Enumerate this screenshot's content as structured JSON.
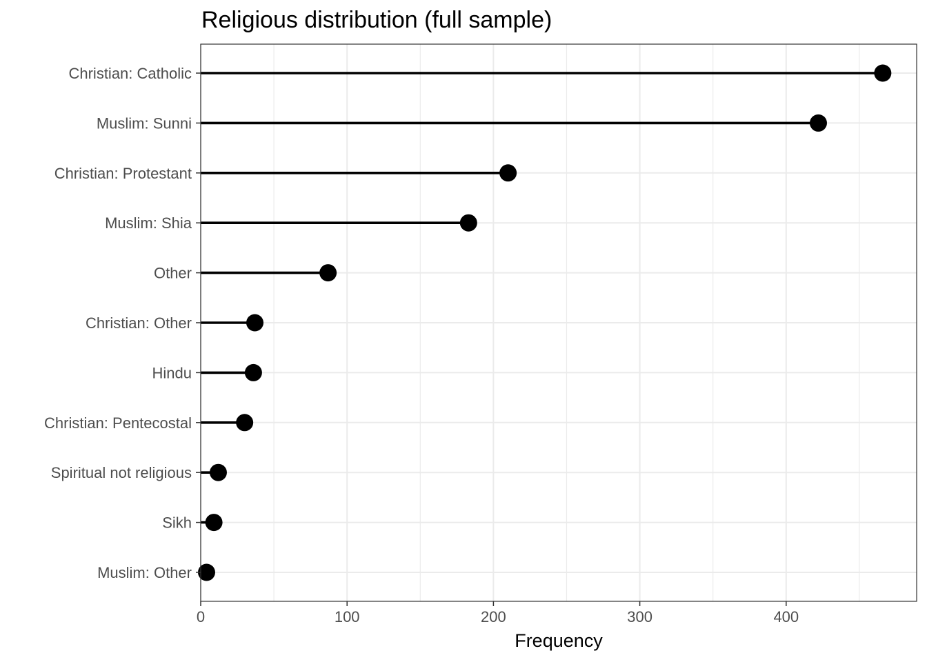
{
  "chart_data": {
    "type": "lollipop",
    "title": "Religious distribution (full sample)",
    "xlabel": "Frequency",
    "ylabel": "",
    "xlim": [
      0,
      490
    ],
    "x_ticks": [
      0,
      100,
      200,
      300,
      400
    ],
    "categories": [
      "Christian: Catholic",
      "Muslim: Sunni",
      "Christian: Protestant",
      "Muslim: Shia",
      "Other",
      "Christian: Other",
      "Hindu",
      "Christian: Pentecostal",
      "Spiritual not religious",
      "Sikh",
      "Muslim: Other"
    ],
    "values": [
      466,
      422,
      210,
      183,
      87,
      37,
      36,
      30,
      12,
      9,
      4
    ],
    "grid": true,
    "legend": "none",
    "colors": {
      "mark": "#000000",
      "grid": "#ebebeb",
      "panel_border": "#333333",
      "tick_text": "#4d4d4d"
    }
  }
}
